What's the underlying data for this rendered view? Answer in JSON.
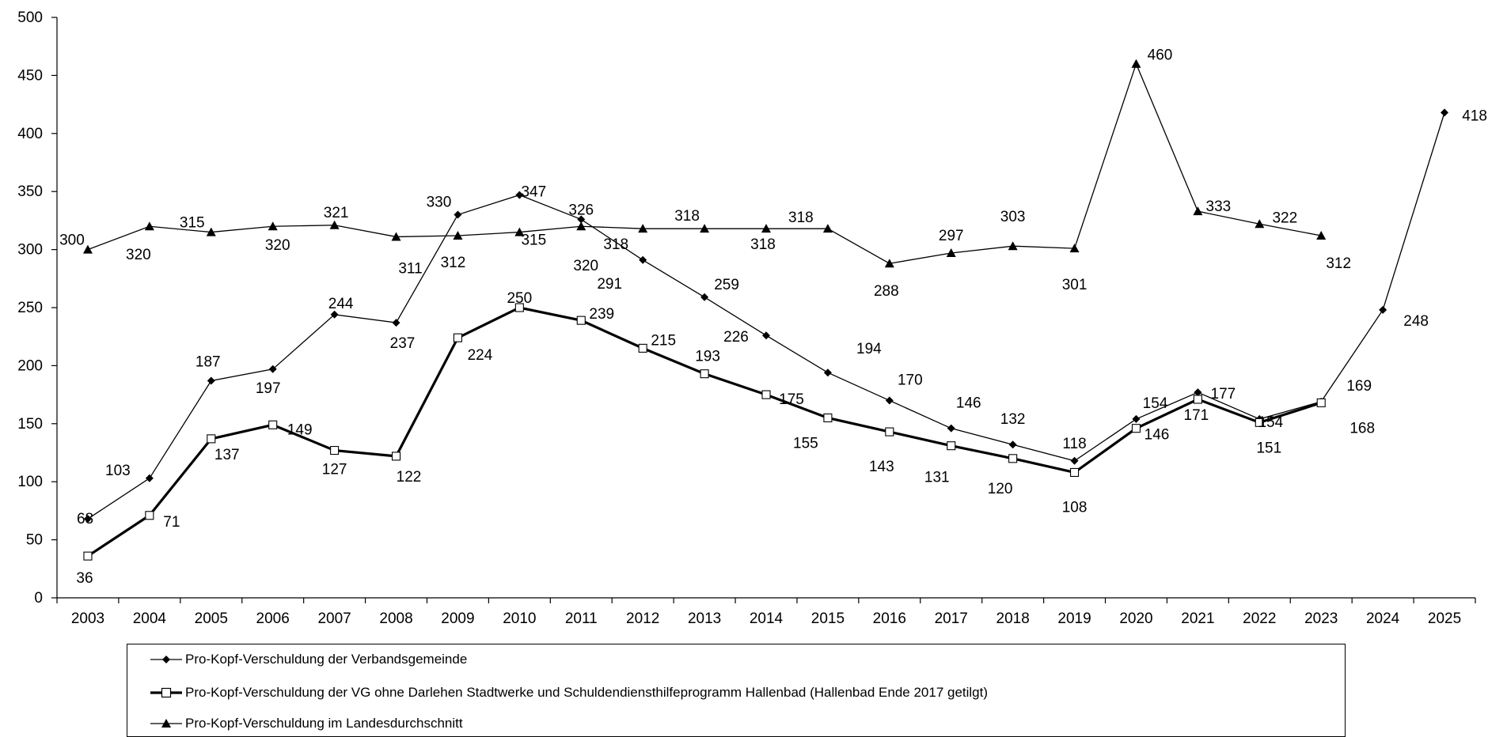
{
  "chart_data": {
    "type": "line",
    "title": "",
    "xlabel": "",
    "ylabel": "",
    "ylim": [
      0,
      500
    ],
    "yticks": [
      0,
      50,
      100,
      150,
      200,
      250,
      300,
      350,
      400,
      450,
      500
    ],
    "categories": [
      "2003",
      "2004",
      "2005",
      "2006",
      "2007",
      "2008",
      "2009",
      "2010",
      "2011",
      "2012",
      "2013",
      "2014",
      "2015",
      "2016",
      "2017",
      "2018",
      "2019",
      "2020",
      "2021",
      "2022",
      "2023",
      "2024",
      "2025"
    ],
    "grid": false,
    "legend_position": "bottom",
    "series": [
      {
        "name": "Pro-Kopf-Verschuldung der Verbandsgemeinde",
        "marker": "diamond",
        "line_style": "thin",
        "values": [
          68,
          103,
          187,
          197,
          244,
          237,
          330,
          347,
          326,
          291,
          259,
          226,
          194,
          170,
          146,
          132,
          118,
          154,
          177,
          154,
          169,
          248,
          418
        ]
      },
      {
        "name": "Pro-Kopf-Verschuldung der VG ohne Darlehen Stadtwerke und Schuldendiensthilfeprogramm Hallenbad (Hallenbad Ende 2017 getilgt)",
        "marker": "square",
        "line_style": "thick",
        "values": [
          36,
          71,
          137,
          149,
          127,
          122,
          224,
          250,
          239,
          215,
          193,
          175,
          155,
          143,
          131,
          120,
          108,
          146,
          171,
          151,
          168,
          null,
          null
        ]
      },
      {
        "name": "Pro-Kopf-Verschuldung im Landesdurchschnitt",
        "marker": "triangle",
        "line_style": "thin",
        "values": [
          300,
          320,
          315,
          320,
          321,
          311,
          312,
          315,
          320,
          318,
          318,
          318,
          318,
          288,
          297,
          303,
          301,
          460,
          333,
          322,
          312,
          null,
          null
        ]
      }
    ]
  }
}
